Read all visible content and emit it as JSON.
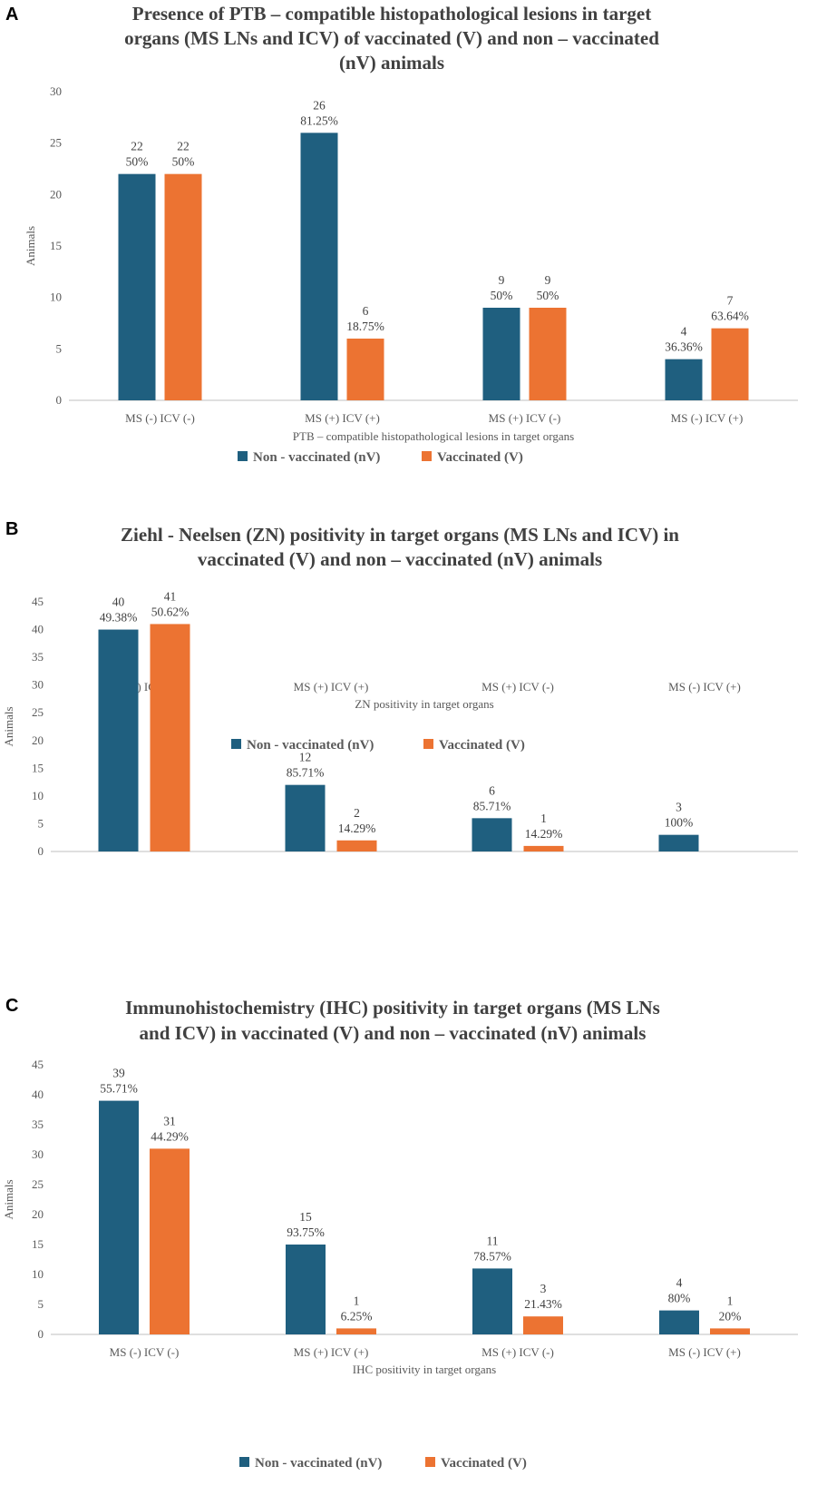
{
  "colors": {
    "nonvaccinated": "#1f5f7f",
    "vaccinated": "#ec7332",
    "grid": "#d9d9d9",
    "axis": "#bfbfbf"
  },
  "chart_data": [
    {
      "panel": "A",
      "type": "bar",
      "title": [
        "Presence  of  PTB – compatible histopathological lesions in target",
        "organs (MS LNs and ICV) of vaccinated (V)  and non – vaccinated",
        "(nV)  animals"
      ],
      "xlabel": "PTB – compatible histopathological lesions in target organs",
      "ylabel": "Animals",
      "ylim": [
        0,
        30
      ],
      "yticks": [
        0,
        5,
        10,
        15,
        20,
        25,
        30
      ],
      "grid": false,
      "legend_position": "bottom",
      "categories": [
        "MS (-) ICV (-)",
        "MS (+) ICV (+)",
        "MS (+) ICV (-)",
        "MS (-) ICV (+)"
      ],
      "series": [
        {
          "name": "Non - vaccinated (nV)",
          "key": "nonvaccinated",
          "values": [
            22,
            26,
            9,
            4
          ],
          "percents": [
            "50%",
            "81.25%",
            "50%",
            "36.36%"
          ]
        },
        {
          "name": "Vaccinated (V)",
          "key": "vaccinated",
          "values": [
            22,
            6,
            9,
            7
          ],
          "percents": [
            "50%",
            "18.75%",
            "50%",
            "63.64%"
          ]
        }
      ]
    },
    {
      "panel": "B",
      "type": "bar",
      "title": [
        "Ziehl - Neelsen (ZN) positivity in target organs (MS LNs and ICV) in",
        "vaccinated (V) and non – vaccinated (nV) animals"
      ],
      "xlabel": "ZN positivity in target organs",
      "ylabel": "Animals",
      "ylim": [
        0,
        45
      ],
      "yticks": [
        0,
        5,
        10,
        15,
        20,
        25,
        30,
        35,
        40,
        45
      ],
      "grid": false,
      "legend_position": "bottom",
      "categories": [
        "MS (-) ICV (-)",
        "MS (+) ICV (+)",
        "MS (+) ICV (-)",
        "MS (-) ICV (+)"
      ],
      "series": [
        {
          "name": "Non - vaccinated (nV)",
          "key": "nonvaccinated",
          "values": [
            40,
            12,
            6,
            3
          ],
          "percents": [
            "49.38%",
            "85.71%",
            "85.71%",
            "100%"
          ]
        },
        {
          "name": "Vaccinated (V)",
          "key": "vaccinated",
          "values": [
            41,
            2,
            1,
            0
          ],
          "percents": [
            "50.62%",
            "14.29%",
            "14.29%",
            null
          ]
        }
      ]
    },
    {
      "panel": "C",
      "type": "bar",
      "title": [
        "Immunohistochemistry (IHC) positivity in target organs (MS LNs",
        "and ICV) in vaccinated (V) and non – vaccinated (nV)  animals"
      ],
      "xlabel": "IHC positivity in target organs",
      "ylabel": "Animals",
      "ylim": [
        0,
        45
      ],
      "yticks": [
        0,
        5,
        10,
        15,
        20,
        25,
        30,
        35,
        40,
        45
      ],
      "grid": false,
      "legend_position": "bottom",
      "categories": [
        "MS (-) ICV (-)",
        "MS (+) ICV (+)",
        "MS (+) ICV (-)",
        "MS (-) ICV (+)"
      ],
      "series": [
        {
          "name": "Non - vaccinated (nV)",
          "key": "nonvaccinated",
          "values": [
            39,
            15,
            11,
            4
          ],
          "percents": [
            "55.71%",
            "93.75%",
            "78.57%",
            "80%"
          ]
        },
        {
          "name": "Vaccinated (V)",
          "key": "vaccinated",
          "values": [
            31,
            1,
            3,
            1
          ],
          "percents": [
            "44.29%",
            "6.25%",
            "21.43%",
            "20%"
          ]
        }
      ]
    }
  ]
}
